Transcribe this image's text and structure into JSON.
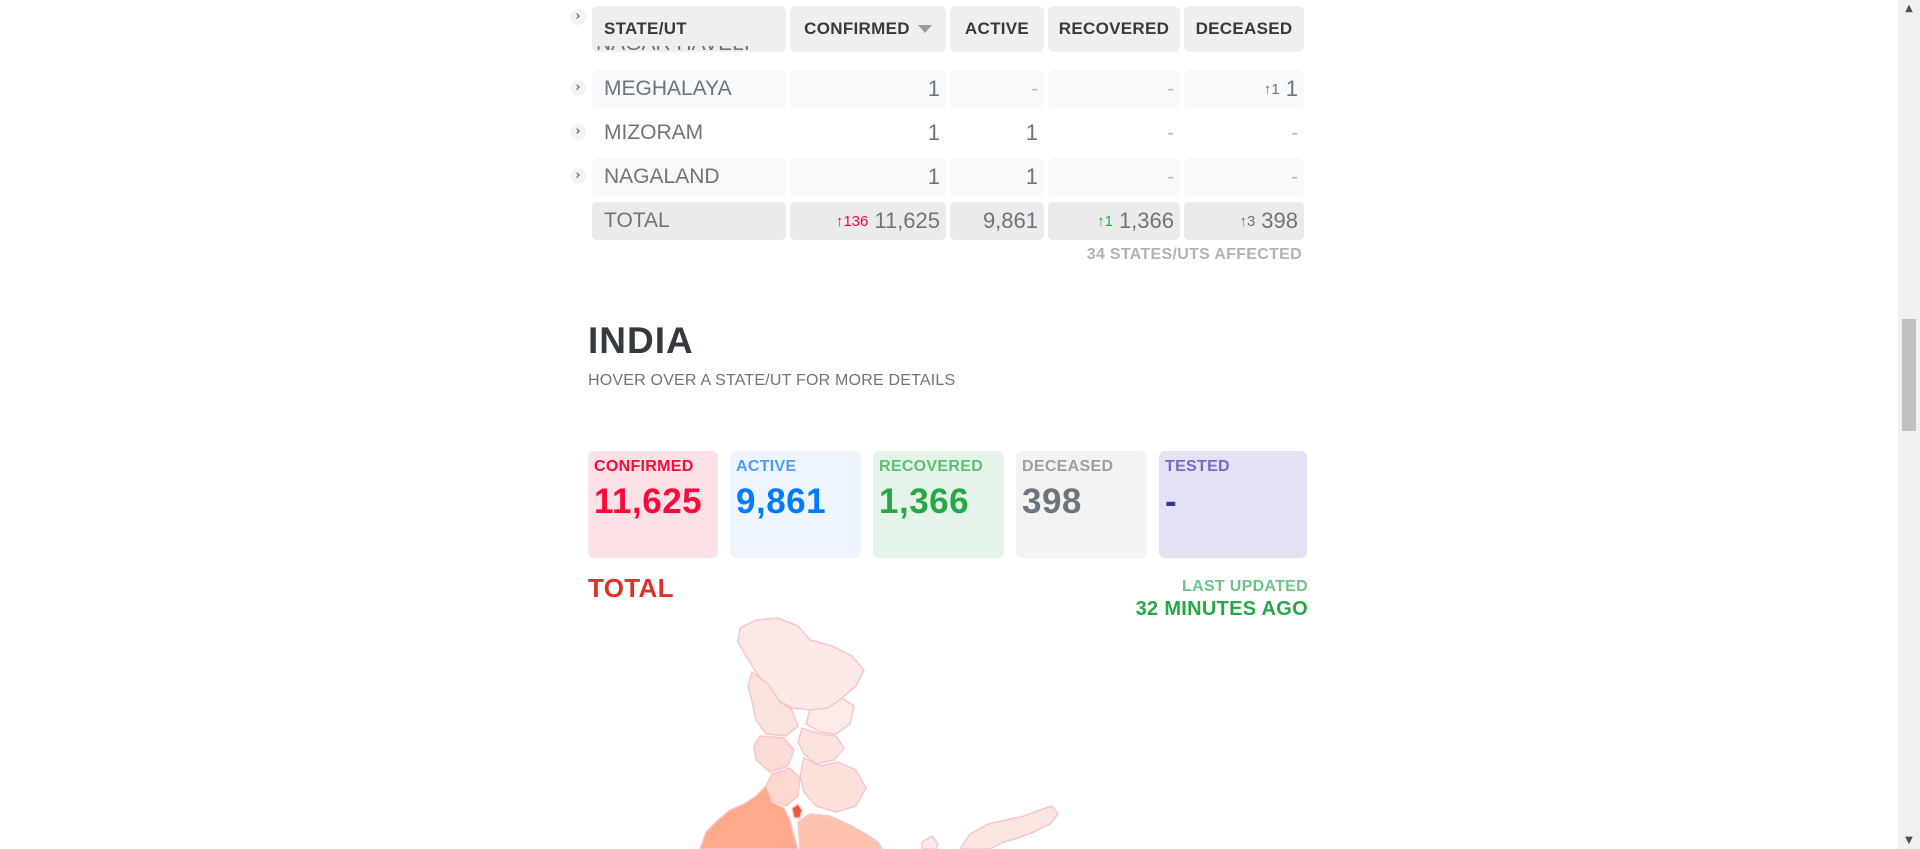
{
  "table": {
    "headers": {
      "state": "STATE/UT",
      "confirmed": "CONFIRMED",
      "active": "ACTIVE",
      "recovered": "RECOVERED",
      "deceased": "DECEASED"
    },
    "clipped_row_name": "NAGAR HAVELI",
    "rows": [
      {
        "state": "MEGHALAYA",
        "confirmed": "1",
        "active": "-",
        "recovered": "-",
        "deceased": "1",
        "deceased_delta": "↑1"
      },
      {
        "state": "MIZORAM",
        "confirmed": "1",
        "active": "1",
        "recovered": "-",
        "deceased": "-"
      },
      {
        "state": "NAGALAND",
        "confirmed": "1",
        "active": "1",
        "recovered": "-",
        "deceased": "-"
      }
    ],
    "total": {
      "label": "TOTAL",
      "confirmed": "11,625",
      "confirmed_delta": "↑136",
      "active": "9,861",
      "recovered": "1,366",
      "recovered_delta": "↑1",
      "deceased": "398",
      "deceased_delta": "↑3"
    },
    "affected_note": "34 STATES/UTS AFFECTED"
  },
  "india": {
    "title": "INDIA",
    "subtitle": "HOVER OVER A STATE/UT FOR MORE DETAILS",
    "cards": {
      "confirmed": {
        "label": "CONFIRMED",
        "value": "11,625"
      },
      "active": {
        "label": "ACTIVE",
        "value": "9,861"
      },
      "recovered": {
        "label": "RECOVERED",
        "value": "1,366"
      },
      "deceased": {
        "label": "DECEASED",
        "value": "398"
      },
      "tested": {
        "label": "TESTED",
        "value": "-"
      }
    },
    "total_label": "TOTAL",
    "last_updated_label": "LAST UPDATED",
    "last_updated_value": "32 MINUTES AGO"
  },
  "icons": {
    "row_expand": "chevron-right-icon",
    "sort": "sort-down-icon",
    "scroll_up": "scroll-up-icon",
    "scroll_down": "scroll-down-icon"
  },
  "colors": {
    "confirmed": "#ff073a",
    "active": "#007bff",
    "recovered": "#28a745",
    "deceased": "#6c757d",
    "tested": "#3b3791",
    "total_label": "#e0302a"
  }
}
